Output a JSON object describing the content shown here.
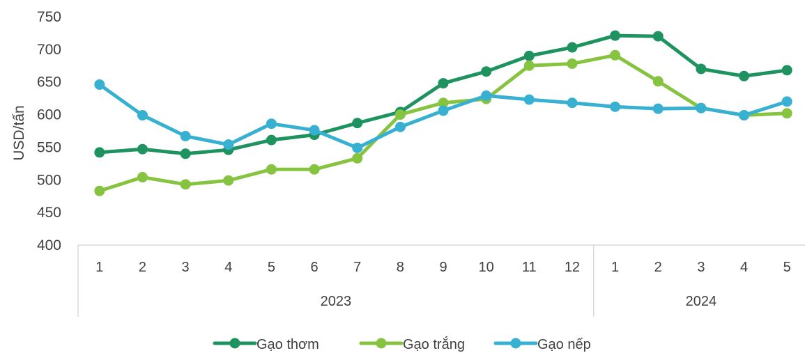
{
  "chart_data": {
    "type": "line",
    "title": "",
    "ylabel": "USD/tấn",
    "xlabel": "",
    "ylim": [
      400,
      750
    ],
    "yticks": [
      400,
      450,
      500,
      550,
      600,
      650,
      700,
      750
    ],
    "categories": [
      "1",
      "2",
      "3",
      "4",
      "5",
      "6",
      "7",
      "8",
      "9",
      "10",
      "11",
      "12",
      "1",
      "2",
      "3",
      "4",
      "5"
    ],
    "year_groups": [
      {
        "label": "2023",
        "count": 12
      },
      {
        "label": "2024",
        "count": 5
      }
    ],
    "series": [
      {
        "name": "Gạo thơm",
        "color": "#1e9360",
        "values": [
          542,
          547,
          540,
          546,
          561,
          569,
          587,
          604,
          648,
          666,
          690,
          703,
          721,
          720,
          670,
          659,
          668
        ]
      },
      {
        "name": "Gạo trắng",
        "color": "#86c341",
        "values": [
          483,
          504,
          493,
          499,
          516,
          516,
          533,
          600,
          618,
          624,
          675,
          678,
          691,
          651,
          610,
          599,
          602
        ]
      },
      {
        "name": "Gạo nếp",
        "color": "#38b0d2",
        "values": [
          646,
          599,
          567,
          554,
          586,
          576,
          549,
          581,
          606,
          629,
          623,
          618,
          612,
          609,
          610,
          599,
          620
        ]
      }
    ],
    "grid": false,
    "legend": "bottom"
  }
}
